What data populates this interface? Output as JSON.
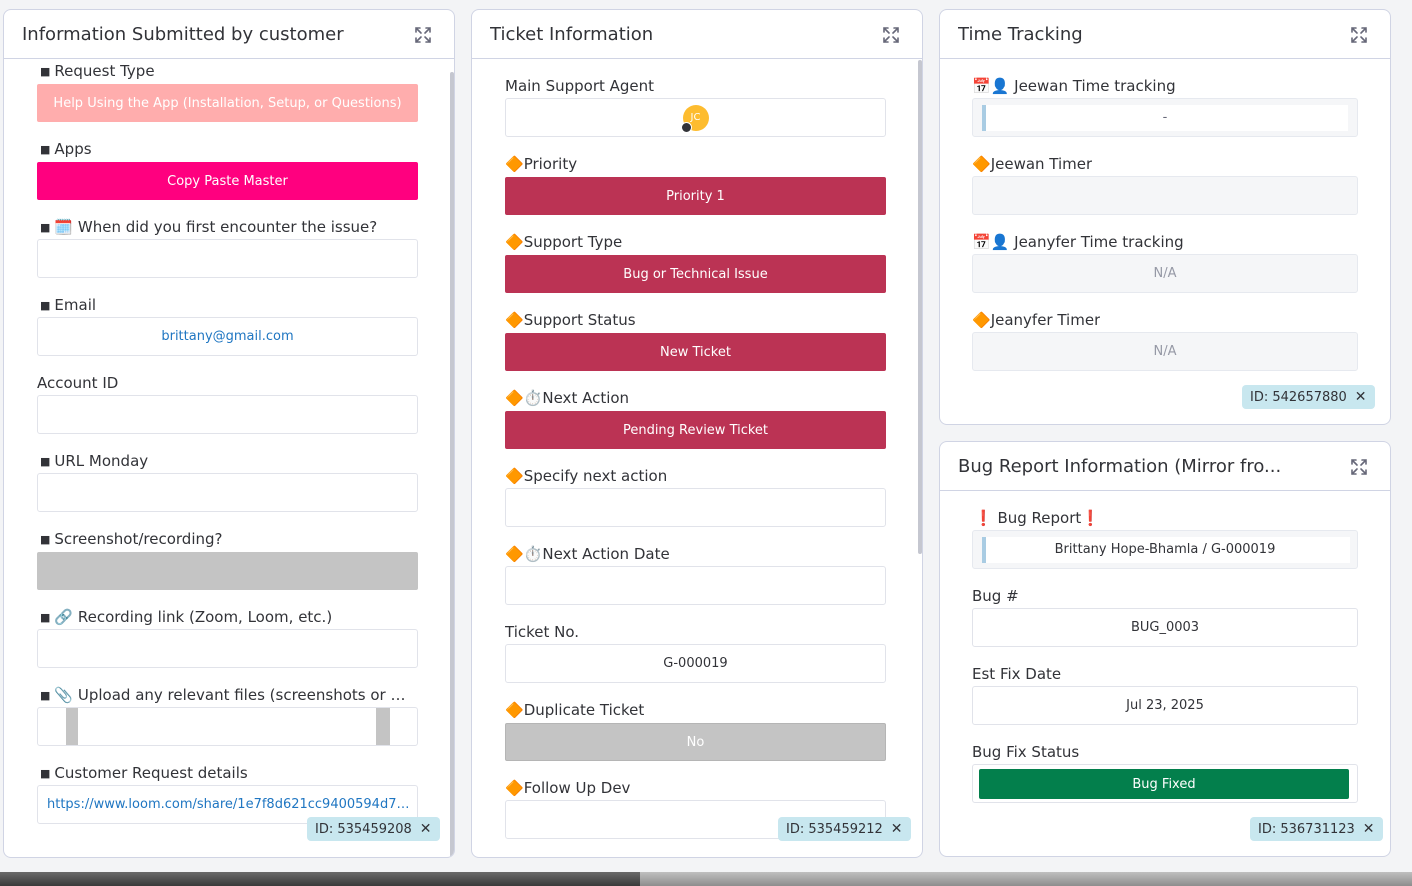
{
  "panels": {
    "customer": {
      "title": "Information Submitted by customer",
      "fields": {
        "request_type": {
          "label": "Request Type",
          "value": "Help Using the App (Installation, Setup, or Questions)"
        },
        "apps": {
          "label": "Apps",
          "value": "Copy Paste Master"
        },
        "first_encounter": {
          "label": "When did you first encounter the issue?",
          "value": ""
        },
        "email": {
          "label": "Email",
          "value": "brittany@gmail.com"
        },
        "account_id": {
          "label": "Account ID",
          "value": ""
        },
        "url_monday": {
          "label": "URL Monday",
          "value": ""
        },
        "screenshot": {
          "label": "Screenshot/recording?",
          "value": ""
        },
        "recording_link": {
          "label": "Recording link (Zoom, Loom, etc.)",
          "value": ""
        },
        "upload_files": {
          "label": "Upload any relevant files (screenshots or vi...",
          "value": ""
        },
        "request_details": {
          "label": "Customer Request details",
          "value": "https://www.loom.com/share/1e7f8d621cc9400594d7e..."
        }
      },
      "id_badge": "ID: 535459208",
      "bullet": "■"
    },
    "ticket": {
      "title": "Ticket Information",
      "fields": {
        "main_agent": {
          "label": "Main Support Agent",
          "avatar_initials": "JC"
        },
        "priority": {
          "label": "Priority",
          "value": "Priority 1"
        },
        "support_type": {
          "label": "Support Type",
          "value": "Bug or Technical Issue"
        },
        "support_status": {
          "label": "Support Status",
          "value": "New Ticket"
        },
        "next_action": {
          "label": "Next Action",
          "value": "Pending Review Ticket"
        },
        "specify_next_action": {
          "label": "Specify next action",
          "value": ""
        },
        "next_action_date": {
          "label": "Next Action Date",
          "value": ""
        },
        "ticket_no": {
          "label": "Ticket No.",
          "value": "G-000019"
        },
        "duplicate_ticket": {
          "label": "Duplicate Ticket",
          "value": "No"
        },
        "follow_up_dev": {
          "label": "Follow Up Dev",
          "value": ""
        }
      },
      "id_badge": "ID: 535459212"
    },
    "time_tracking": {
      "title": "Time Tracking",
      "fields": {
        "jeewan_tracking": {
          "label": "Jeewan Time tracking",
          "value": "-"
        },
        "jeewan_timer": {
          "label": "Jeewan Timer",
          "value": ""
        },
        "jeanyfer_tracking": {
          "label": "Jeanyfer Time tracking",
          "value": "N/A"
        },
        "jeanyfer_timer": {
          "label": "Jeanyfer Timer",
          "value": "N/A"
        }
      },
      "id_badge": "ID: 542657880"
    },
    "bug_report": {
      "title": "Bug Report Information (Mirror fro...",
      "fields": {
        "bug_report": {
          "label": "Bug Report",
          "value": "Brittany Hope-Bhamla / G-000019"
        },
        "bug_number": {
          "label": "Bug #",
          "value": "BUG_0003"
        },
        "est_fix_date": {
          "label": "Est Fix Date",
          "value": "Jul 23, 2025"
        },
        "bug_fix_status": {
          "label": "Bug Fix Status",
          "value": "Bug Fixed"
        }
      },
      "id_badge": "ID: 536731123"
    }
  },
  "glyphs": {
    "diamond": "🔶",
    "calendar": "🗓️",
    "calendar_person": "📅👤",
    "stopwatch": "⏱️",
    "link": "🔗",
    "paperclip": "📎",
    "exclaim": "❗"
  },
  "colors": {
    "request_type": "#ffadad",
    "apps": "#ff007f",
    "status_red": "#bb3354",
    "grey_box": "#c4c4c4",
    "bug_fixed": "#037f4c",
    "avatar": "#fdbc2f",
    "id_badge": "#c8e7ef"
  },
  "icons": {
    "expand": "expand-arrows-icon",
    "close": "close-icon"
  }
}
